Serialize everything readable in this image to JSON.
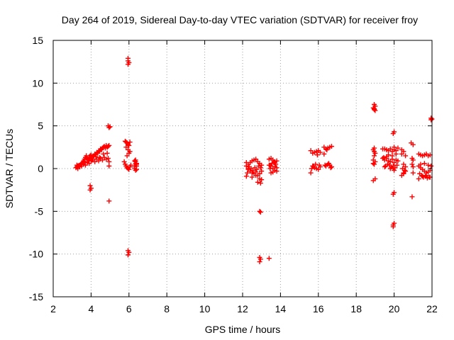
{
  "chart_data": {
    "type": "scatter",
    "title": "Day 264 of 2019, Sidereal Day-to-day VTEC variation (SDTVAR) for receiver froy",
    "xlabel": "GPS time / hours",
    "ylabel": "SDTVAR / TECUs",
    "xlim": [
      2,
      22
    ],
    "ylim": [
      -15,
      15
    ],
    "xticks": [
      2,
      4,
      6,
      8,
      10,
      12,
      14,
      16,
      18,
      20,
      22
    ],
    "yticks": [
      -15,
      -10,
      -5,
      0,
      5,
      10,
      15
    ],
    "grid": true,
    "marker": "+",
    "color": "#ff0000",
    "series": [
      {
        "name": "SDTVAR",
        "x": [
          3.2,
          3.25,
          3.3,
          3.35,
          3.4,
          3.45,
          3.5,
          3.55,
          3.6,
          3.65,
          3.7,
          3.75,
          3.8,
          3.85,
          3.9,
          3.95,
          4.0,
          4.05,
          4.1,
          4.15,
          4.2,
          4.25,
          4.3,
          4.35,
          4.4,
          4.45,
          4.5,
          4.55,
          4.6,
          4.65,
          4.7,
          4.75,
          4.8,
          4.85,
          4.9,
          4.95,
          3.3,
          3.4,
          3.5,
          3.6,
          3.7,
          3.8,
          3.9,
          4.0,
          4.1,
          4.2,
          4.3,
          4.4,
          4.5,
          4.6,
          4.7,
          4.8,
          4.9,
          4.95,
          3.25,
          3.45,
          3.65,
          3.85,
          4.05,
          4.25,
          4.45,
          4.65,
          4.85,
          4.95,
          4.9,
          4.95,
          5.0,
          4.95,
          3.95,
          4.0,
          3.95,
          5.8,
          5.85,
          5.9,
          5.95,
          6.0,
          6.05,
          5.85,
          5.95,
          6.05,
          5.75,
          5.8,
          5.85,
          5.9,
          5.95,
          6.0,
          6.05,
          6.1,
          5.9,
          6.0,
          5.95,
          5.95,
          6.0,
          5.95,
          5.95,
          6.0,
          5.95,
          6.3,
          6.35,
          6.4,
          6.3,
          6.35,
          6.4,
          6.35,
          6.3,
          6.4,
          6.35,
          6.4,
          6.3,
          12.2,
          12.3,
          12.4,
          12.5,
          12.6,
          12.7,
          12.8,
          12.9,
          13.0,
          12.2,
          12.3,
          12.4,
          12.5,
          12.6,
          12.7,
          12.8,
          12.9,
          13.0,
          12.25,
          12.35,
          12.45,
          12.55,
          12.65,
          12.75,
          12.85,
          12.95,
          12.3,
          12.5,
          12.7,
          12.9,
          12.2,
          12.8,
          13.0,
          12.95,
          12.9,
          12.95,
          12.9,
          12.95,
          12.9,
          13.4,
          13.5,
          13.6,
          13.7,
          13.8,
          13.4,
          13.5,
          13.6,
          13.7,
          13.8,
          13.45,
          13.55,
          13.65,
          13.75,
          13.4,
          13.6,
          13.8,
          13.5,
          13.7,
          13.45,
          15.6,
          15.7,
          15.8,
          15.9,
          16.0,
          16.1,
          15.6,
          15.7,
          15.8,
          15.9,
          16.0,
          16.1,
          15.65,
          15.85,
          16.05,
          15.75,
          15.95,
          16.3,
          16.4,
          16.5,
          16.6,
          16.7,
          16.3,
          16.4,
          16.5,
          16.6,
          16.7,
          16.35,
          16.55,
          16.45,
          16.65,
          18.9,
          18.95,
          19.0,
          18.9,
          18.95,
          19.0,
          18.95,
          18.9,
          18.95,
          19.0,
          18.95,
          18.9,
          19.0,
          18.95,
          19.0,
          18.9,
          18.95,
          19.4,
          19.5,
          19.6,
          19.7,
          19.8,
          19.9,
          20.0,
          20.1,
          20.2,
          19.4,
          19.5,
          19.6,
          19.7,
          19.8,
          19.9,
          20.0,
          20.1,
          20.2,
          19.45,
          19.55,
          19.65,
          19.75,
          19.85,
          19.95,
          20.05,
          20.15,
          19.5,
          19.7,
          19.9,
          20.1,
          19.6,
          19.8,
          20.0,
          19.95,
          20.0,
          19.95,
          20.0,
          19.95,
          20.0,
          19.95,
          19.95,
          20.0,
          20.4,
          20.5,
          20.6,
          20.4,
          20.5,
          20.6,
          20.45,
          20.55,
          20.5,
          20.4,
          20.6,
          20.5,
          20.9,
          21.0,
          20.95,
          21.0,
          20.95,
          21.0,
          21.0,
          20.95,
          21.3,
          21.4,
          21.5,
          21.6,
          21.7,
          21.8,
          21.9,
          21.3,
          21.4,
          21.5,
          21.6,
          21.7,
          21.8,
          21.9,
          21.35,
          21.45,
          21.55,
          21.65,
          21.75,
          21.85,
          21.3,
          21.5,
          21.7,
          21.9,
          21.4,
          21.6,
          21.8,
          21.95,
          22.0,
          21.95,
          21.95
        ],
        "y": [
          0.1,
          0.2,
          0.3,
          0.35,
          0.4,
          0.5,
          0.6,
          0.7,
          0.9,
          1.1,
          1.3,
          1.5,
          1.2,
          1.0,
          1.3,
          1.5,
          1.6,
          1.2,
          1.4,
          1.5,
          1.7,
          1.6,
          1.9,
          1.8,
          2.0,
          2.1,
          2.3,
          2.2,
          2.4,
          2.5,
          2.6,
          2.4,
          2.7,
          2.5,
          2.6,
          2.7,
          0.0,
          0.2,
          0.3,
          0.5,
          0.4,
          0.7,
          0.6,
          0.9,
          1.0,
          0.8,
          1.1,
          0.9,
          1.2,
          1.0,
          1.3,
          1.1,
          1.2,
          0.8,
          0.4,
          0.5,
          0.8,
          1.1,
          1.0,
          1.4,
          1.3,
          1.7,
          1.8,
          0.3,
          5.0,
          4.8,
          4.9,
          -3.8,
          -2.0,
          -2.3,
          -2.5,
          3.2,
          3.1,
          3.0,
          2.8,
          2.7,
          3.1,
          2.5,
          2.2,
          2.0,
          0.8,
          0.5,
          0.3,
          0.1,
          0.0,
          -0.1,
          0.2,
          0.4,
          1.5,
          1.8,
          12.9,
          12.6,
          12.4,
          12.2,
          -9.6,
          -9.8,
          -10.1,
          0.9,
          0.6,
          0.3,
          0.0,
          -0.2,
          0.5,
          0.8,
          0.2,
          -0.1,
          1.0,
          0.6,
          0.4,
          0.7,
          0.5,
          0.7,
          0.9,
          1.0,
          1.1,
          0.8,
          0.6,
          0.4,
          0.3,
          -0.1,
          -0.3,
          -0.5,
          -0.6,
          -0.4,
          -0.8,
          -0.6,
          -0.3,
          -0.5,
          0.2,
          0.0,
          -0.2,
          0.1,
          -0.1,
          0.3,
          0.1,
          0.0,
          -1.0,
          -0.8,
          -1.2,
          -0.9,
          -1.6,
          -1.3,
          -1.7,
          -5.0,
          -5.1,
          -10.4,
          -10.6,
          -10.9,
          -10.5,
          1.2,
          1.0,
          0.8,
          0.9,
          1.1,
          0.3,
          0.0,
          -0.2,
          0.1,
          0.4,
          0.6,
          0.7,
          0.5,
          0.4,
          -0.4,
          -0.3,
          -0.5,
          0.2,
          0.0,
          -0.5,
          1.8,
          1.9,
          2.0,
          2.1,
          1.9,
          2.1,
          0.3,
          0.1,
          0.0,
          -0.1,
          0.2,
          0.0,
          0.5,
          0.4,
          0.3,
          1.6,
          1.7,
          2.3,
          2.4,
          2.5,
          2.6,
          2.5,
          0.3,
          0.5,
          0.4,
          0.2,
          0.4,
          0.6,
          2.2,
          0.1,
          0.6,
          7.5,
          7.3,
          7.1,
          6.9,
          6.8,
          7.0,
          2.2,
          2.0,
          1.8,
          2.4,
          1.0,
          0.8,
          0.5,
          -1.2,
          -1.4,
          1.5,
          1.2,
          2.3,
          2.2,
          2.1,
          2.3,
          2.0,
          2.2,
          2.1,
          2.4,
          2.3,
          1.0,
          1.2,
          0.9,
          0.8,
          1.1,
          0.7,
          1.0,
          0.9,
          1.3,
          0.3,
          0.5,
          0.4,
          0.2,
          0.3,
          0.1,
          0.4,
          0.2,
          1.6,
          1.5,
          1.7,
          1.4,
          0.0,
          -0.2,
          0.1,
          4.3,
          4.1,
          -2.8,
          -3.0,
          -6.4,
          -6.6,
          -6.8,
          2.5,
          2.2,
          2.0,
          1.5,
          1.7,
          0.5,
          0.2,
          0.0,
          -0.2,
          -0.5,
          -0.8,
          -0.3,
          -0.6,
          3.0,
          2.8,
          1.2,
          1.0,
          0.5,
          0.2,
          -0.5,
          -3.3,
          1.7,
          1.6,
          1.5,
          1.6,
          1.7,
          1.5,
          1.6,
          0.3,
          0.1,
          -0.1,
          -0.3,
          -0.5,
          -0.4,
          -0.2,
          -0.6,
          -0.8,
          -1.0,
          -0.9,
          -1.1,
          -1.0,
          -1.2,
          -0.9,
          -0.8,
          -1.0,
          0.5,
          0.6,
          0.4,
          0.3,
          5.8,
          5.7,
          5.9
        ]
      }
    ]
  }
}
